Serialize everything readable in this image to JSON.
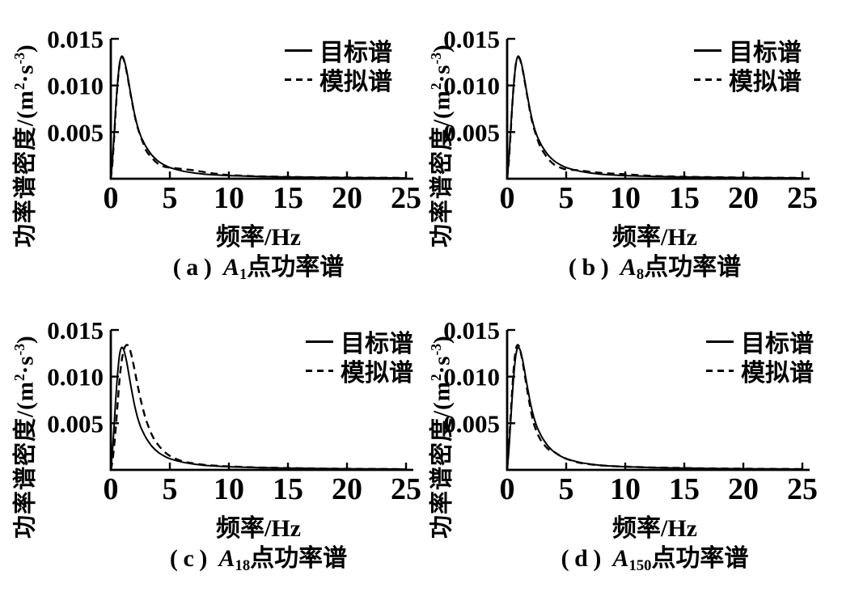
{
  "figure": {
    "background": "#ffffff",
    "ink": "#000000"
  },
  "chart_data": [
    {
      "panel": "a",
      "type": "line",
      "grid": false,
      "caption": {
        "prefix": "(a)",
        "var": "A",
        "sub": "1",
        "suffix": "点功率谱"
      },
      "xlabel": "频率/Hz",
      "ylabel": {
        "p1": "功率谱密度/(m",
        "sup1": "2",
        "p2": "·s",
        "sup2": "-3",
        "p3": ")"
      },
      "xlim": [
        0,
        25
      ],
      "ylim": [
        0,
        0.015
      ],
      "x_tick_values": [
        0,
        5,
        10,
        15,
        20,
        25
      ],
      "x_tick_labels": [
        "0",
        "5",
        "10",
        "15",
        "20",
        "25"
      ],
      "y_tick_values": [
        0.005,
        0.01,
        0.015
      ],
      "y_tick_labels": [
        "0.005",
        "0.010",
        "0.015"
      ],
      "legend": {
        "position": "top-right-inside",
        "entries": [
          {
            "label": "目标谱",
            "style": "solid"
          },
          {
            "label": "模拟谱",
            "style": "dashed"
          }
        ]
      },
      "series": [
        {
          "name": "目标谱",
          "style": "solid",
          "x": [
            0,
            0.15,
            0.3,
            0.45,
            0.6,
            0.75,
            0.9,
            1.05,
            1.2,
            1.4,
            1.6,
            1.8,
            2,
            2.25,
            2.5,
            2.75,
            3,
            3.5,
            4,
            4.5,
            5,
            6,
            7,
            8,
            9,
            10,
            12,
            14,
            16,
            18,
            20,
            22,
            25
          ],
          "y": [
            0,
            0.0022,
            0.0052,
            0.0082,
            0.0107,
            0.0124,
            0.0131,
            0.013,
            0.0124,
            0.0112,
            0.0097,
            0.0083,
            0.007,
            0.0057,
            0.0047,
            0.004,
            0.0034,
            0.0025,
            0.0019,
            0.0015,
            0.0012,
            0.00085,
            0.00062,
            0.00048,
            0.0004,
            0.00034,
            0.00026,
            0.00021,
            0.00017,
            0.00014,
            0.00012,
            0.0001,
            8e-05
          ]
        },
        {
          "name": "模拟谱",
          "style": "dashed",
          "x": [
            0,
            0.15,
            0.3,
            0.45,
            0.6,
            0.75,
            0.9,
            1.05,
            1.2,
            1.4,
            1.6,
            1.8,
            2,
            2.25,
            2.5,
            2.75,
            3,
            3.5,
            4,
            4.5,
            5,
            6,
            7,
            8,
            9,
            10,
            12,
            14,
            16,
            18,
            20,
            22,
            25
          ],
          "y": [
            0,
            0.0019,
            0.0048,
            0.008,
            0.0106,
            0.0123,
            0.013,
            0.0129,
            0.0123,
            0.0111,
            0.0096,
            0.0082,
            0.0069,
            0.0056,
            0.0046,
            0.0038,
            0.003,
            0.0022,
            0.0016,
            0.0013,
            0.0012,
            0.00105,
            0.0009,
            0.0007,
            0.00052,
            0.0004,
            0.00028,
            0.00022,
            0.00018,
            0.00015,
            0.00013,
            0.00011,
            9e-05
          ]
        }
      ]
    },
    {
      "panel": "b",
      "type": "line",
      "grid": false,
      "caption": {
        "prefix": "(b)",
        "var": "A",
        "sub": "8",
        "suffix": "点功率谱"
      },
      "xlabel": "频率/Hz",
      "ylabel": {
        "p1": "功率谱密度/(m",
        "sup1": "2",
        "p2": "·s",
        "sup2": "-3",
        "p3": ")"
      },
      "xlim": [
        0,
        25
      ],
      "ylim": [
        0,
        0.015
      ],
      "x_tick_values": [
        0,
        5,
        10,
        15,
        20,
        25
      ],
      "x_tick_labels": [
        "0",
        "5",
        "10",
        "15",
        "20",
        "25"
      ],
      "y_tick_values": [
        0.005,
        0.01,
        0.015
      ],
      "y_tick_labels": [
        "0.005",
        "0.010",
        "0.015"
      ],
      "legend": {
        "position": "top-right-inside",
        "entries": [
          {
            "label": "目标谱",
            "style": "solid"
          },
          {
            "label": "模拟谱",
            "style": "dashed"
          }
        ]
      },
      "series": [
        {
          "name": "目标谱",
          "style": "solid",
          "x": [
            0,
            0.15,
            0.3,
            0.45,
            0.6,
            0.75,
            0.9,
            1.05,
            1.2,
            1.4,
            1.6,
            1.8,
            2,
            2.25,
            2.5,
            2.75,
            3,
            3.5,
            4,
            4.5,
            5,
            6,
            7,
            8,
            9,
            10,
            12,
            14,
            16,
            18,
            20,
            22,
            25
          ],
          "y": [
            0,
            0.0022,
            0.0052,
            0.0082,
            0.0107,
            0.0124,
            0.0131,
            0.013,
            0.0124,
            0.0112,
            0.0097,
            0.0083,
            0.007,
            0.0057,
            0.0047,
            0.004,
            0.0034,
            0.0025,
            0.0019,
            0.0015,
            0.0012,
            0.00085,
            0.00062,
            0.00048,
            0.0004,
            0.00034,
            0.00026,
            0.00021,
            0.00017,
            0.00014,
            0.00012,
            0.0001,
            8e-05
          ]
        },
        {
          "name": "模拟谱",
          "style": "dashed",
          "x": [
            0,
            0.15,
            0.3,
            0.45,
            0.6,
            0.75,
            0.9,
            1.05,
            1.2,
            1.4,
            1.6,
            1.8,
            2,
            2.25,
            2.5,
            2.75,
            3,
            3.5,
            4,
            4.5,
            5,
            6,
            7,
            8,
            9,
            10,
            12,
            14,
            16,
            18,
            20,
            22,
            25
          ],
          "y": [
            0,
            0.002,
            0.005,
            0.0082,
            0.0107,
            0.0124,
            0.0129,
            0.0129,
            0.0123,
            0.0111,
            0.0096,
            0.0082,
            0.0068,
            0.0055,
            0.0045,
            0.0036,
            0.003,
            0.0021,
            0.0015,
            0.0012,
            0.001,
            0.0009,
            0.00075,
            0.00062,
            0.00055,
            0.00048,
            0.00032,
            0.00024,
            0.00019,
            0.00016,
            0.00013,
            0.00011,
            9e-05
          ]
        }
      ]
    },
    {
      "panel": "c",
      "type": "line",
      "grid": false,
      "caption": {
        "prefix": "(c)",
        "var": "A",
        "sub": "18",
        "suffix": "点功率谱"
      },
      "xlabel": "频率/Hz",
      "ylabel": {
        "p1": "功率谱密度/(m",
        "sup1": "2",
        "p2": "·s",
        "sup2": "-3",
        "p3": ")"
      },
      "xlim": [
        0,
        25
      ],
      "ylim": [
        0,
        0.015
      ],
      "x_tick_values": [
        0,
        5,
        10,
        15,
        20,
        25
      ],
      "x_tick_labels": [
        "0",
        "5",
        "10",
        "15",
        "20",
        "25"
      ],
      "y_tick_values": [
        0.005,
        0.01,
        0.015
      ],
      "y_tick_labels": [
        "0.005",
        "0.010",
        "0.015"
      ],
      "legend": {
        "position": "top-right-inside",
        "entries": [
          {
            "label": "目标谱",
            "style": "solid"
          },
          {
            "label": "模拟谱",
            "style": "dashed"
          }
        ]
      },
      "series": [
        {
          "name": "目标谱",
          "style": "solid",
          "x": [
            0,
            0.15,
            0.3,
            0.45,
            0.6,
            0.75,
            0.9,
            1.05,
            1.2,
            1.4,
            1.6,
            1.8,
            2,
            2.25,
            2.5,
            2.75,
            3,
            3.5,
            4,
            4.5,
            5,
            6,
            7,
            8,
            9,
            10,
            12,
            14,
            16,
            18,
            20,
            22,
            25
          ],
          "y": [
            0,
            0.0022,
            0.0052,
            0.0082,
            0.0107,
            0.0124,
            0.0131,
            0.013,
            0.0124,
            0.0112,
            0.0097,
            0.0083,
            0.007,
            0.0057,
            0.0047,
            0.004,
            0.0034,
            0.0025,
            0.0019,
            0.0015,
            0.0012,
            0.00085,
            0.00062,
            0.00048,
            0.0004,
            0.00034,
            0.00026,
            0.00021,
            0.00017,
            0.00014,
            0.00012,
            0.0001,
            8e-05
          ]
        },
        {
          "name": "模拟谱",
          "style": "dashed",
          "x": [
            0,
            0.15,
            0.3,
            0.45,
            0.6,
            0.75,
            0.9,
            1.05,
            1.2,
            1.4,
            1.6,
            1.8,
            2,
            2.25,
            2.5,
            2.75,
            3,
            3.5,
            4,
            4.5,
            5,
            6,
            7,
            8,
            9,
            10,
            12,
            14,
            16,
            18,
            20,
            22,
            25
          ],
          "y": [
            0,
            0.001,
            0.0028,
            0.005,
            0.0075,
            0.0098,
            0.0115,
            0.0126,
            0.0132,
            0.0134,
            0.013,
            0.012,
            0.0108,
            0.0092,
            0.0077,
            0.0064,
            0.0053,
            0.0037,
            0.0027,
            0.002,
            0.0015,
            0.00095,
            0.0007,
            0.00053,
            0.00044,
            0.00037,
            0.00028,
            0.00022,
            0.00018,
            0.00014,
            0.00012,
            0.0001,
            8e-05
          ]
        }
      ]
    },
    {
      "panel": "d",
      "type": "line",
      "grid": false,
      "caption": {
        "prefix": "(d)",
        "var": "A",
        "sub": "150",
        "suffix": "点功率谱"
      },
      "xlabel": "频率/Hz",
      "ylabel": {
        "p1": "功率谱密度/(m",
        "sup1": "2",
        "p2": "·s",
        "sup2": "-3",
        "p3": ")"
      },
      "xlim": [
        0,
        25
      ],
      "ylim": [
        0,
        0.015
      ],
      "x_tick_values": [
        0,
        5,
        10,
        15,
        20,
        25
      ],
      "x_tick_labels": [
        "0",
        "5",
        "10",
        "15",
        "20",
        "25"
      ],
      "y_tick_values": [
        0.005,
        0.01,
        0.015
      ],
      "y_tick_labels": [
        "0.005",
        "0.010",
        "0.015"
      ],
      "legend": {
        "position": "top-right-inside",
        "entries": [
          {
            "label": "目标谱",
            "style": "solid"
          },
          {
            "label": "模拟谱",
            "style": "dashed"
          }
        ]
      },
      "series": [
        {
          "name": "目标谱",
          "style": "solid",
          "x": [
            0,
            0.15,
            0.3,
            0.45,
            0.6,
            0.75,
            0.9,
            1.05,
            1.2,
            1.4,
            1.6,
            1.8,
            2,
            2.25,
            2.5,
            2.75,
            3,
            3.5,
            4,
            4.5,
            5,
            6,
            7,
            8,
            9,
            10,
            12,
            14,
            16,
            18,
            20,
            22,
            25
          ],
          "y": [
            0,
            0.0022,
            0.0052,
            0.0082,
            0.0107,
            0.0124,
            0.0131,
            0.013,
            0.0124,
            0.0112,
            0.0097,
            0.0083,
            0.007,
            0.0057,
            0.0047,
            0.004,
            0.0034,
            0.0025,
            0.0019,
            0.0015,
            0.0012,
            0.00085,
            0.00062,
            0.00048,
            0.0004,
            0.00034,
            0.00026,
            0.00021,
            0.00017,
            0.00014,
            0.00012,
            0.0001,
            8e-05
          ]
        },
        {
          "name": "模拟谱",
          "style": "dashed",
          "x": [
            0,
            0.15,
            0.3,
            0.45,
            0.6,
            0.75,
            0.9,
            1.05,
            1.2,
            1.4,
            1.6,
            1.8,
            2,
            2.25,
            2.5,
            2.75,
            3,
            3.5,
            4,
            4.5,
            5,
            6,
            7,
            8,
            9,
            10,
            12,
            14,
            16,
            18,
            20,
            22,
            25
          ],
          "y": [
            0,
            0.0026,
            0.0058,
            0.009,
            0.0115,
            0.013,
            0.0134,
            0.0131,
            0.0123,
            0.0109,
            0.0093,
            0.0078,
            0.0064,
            0.005,
            0.0041,
            0.0034,
            0.0029,
            0.0022,
            0.0019,
            0.0015,
            0.0012,
            0.0008,
            0.0006,
            0.00048,
            0.0004,
            0.00035,
            0.00027,
            0.00022,
            0.00018,
            0.00015,
            0.00013,
            0.00011,
            9e-05
          ]
        }
      ]
    }
  ]
}
